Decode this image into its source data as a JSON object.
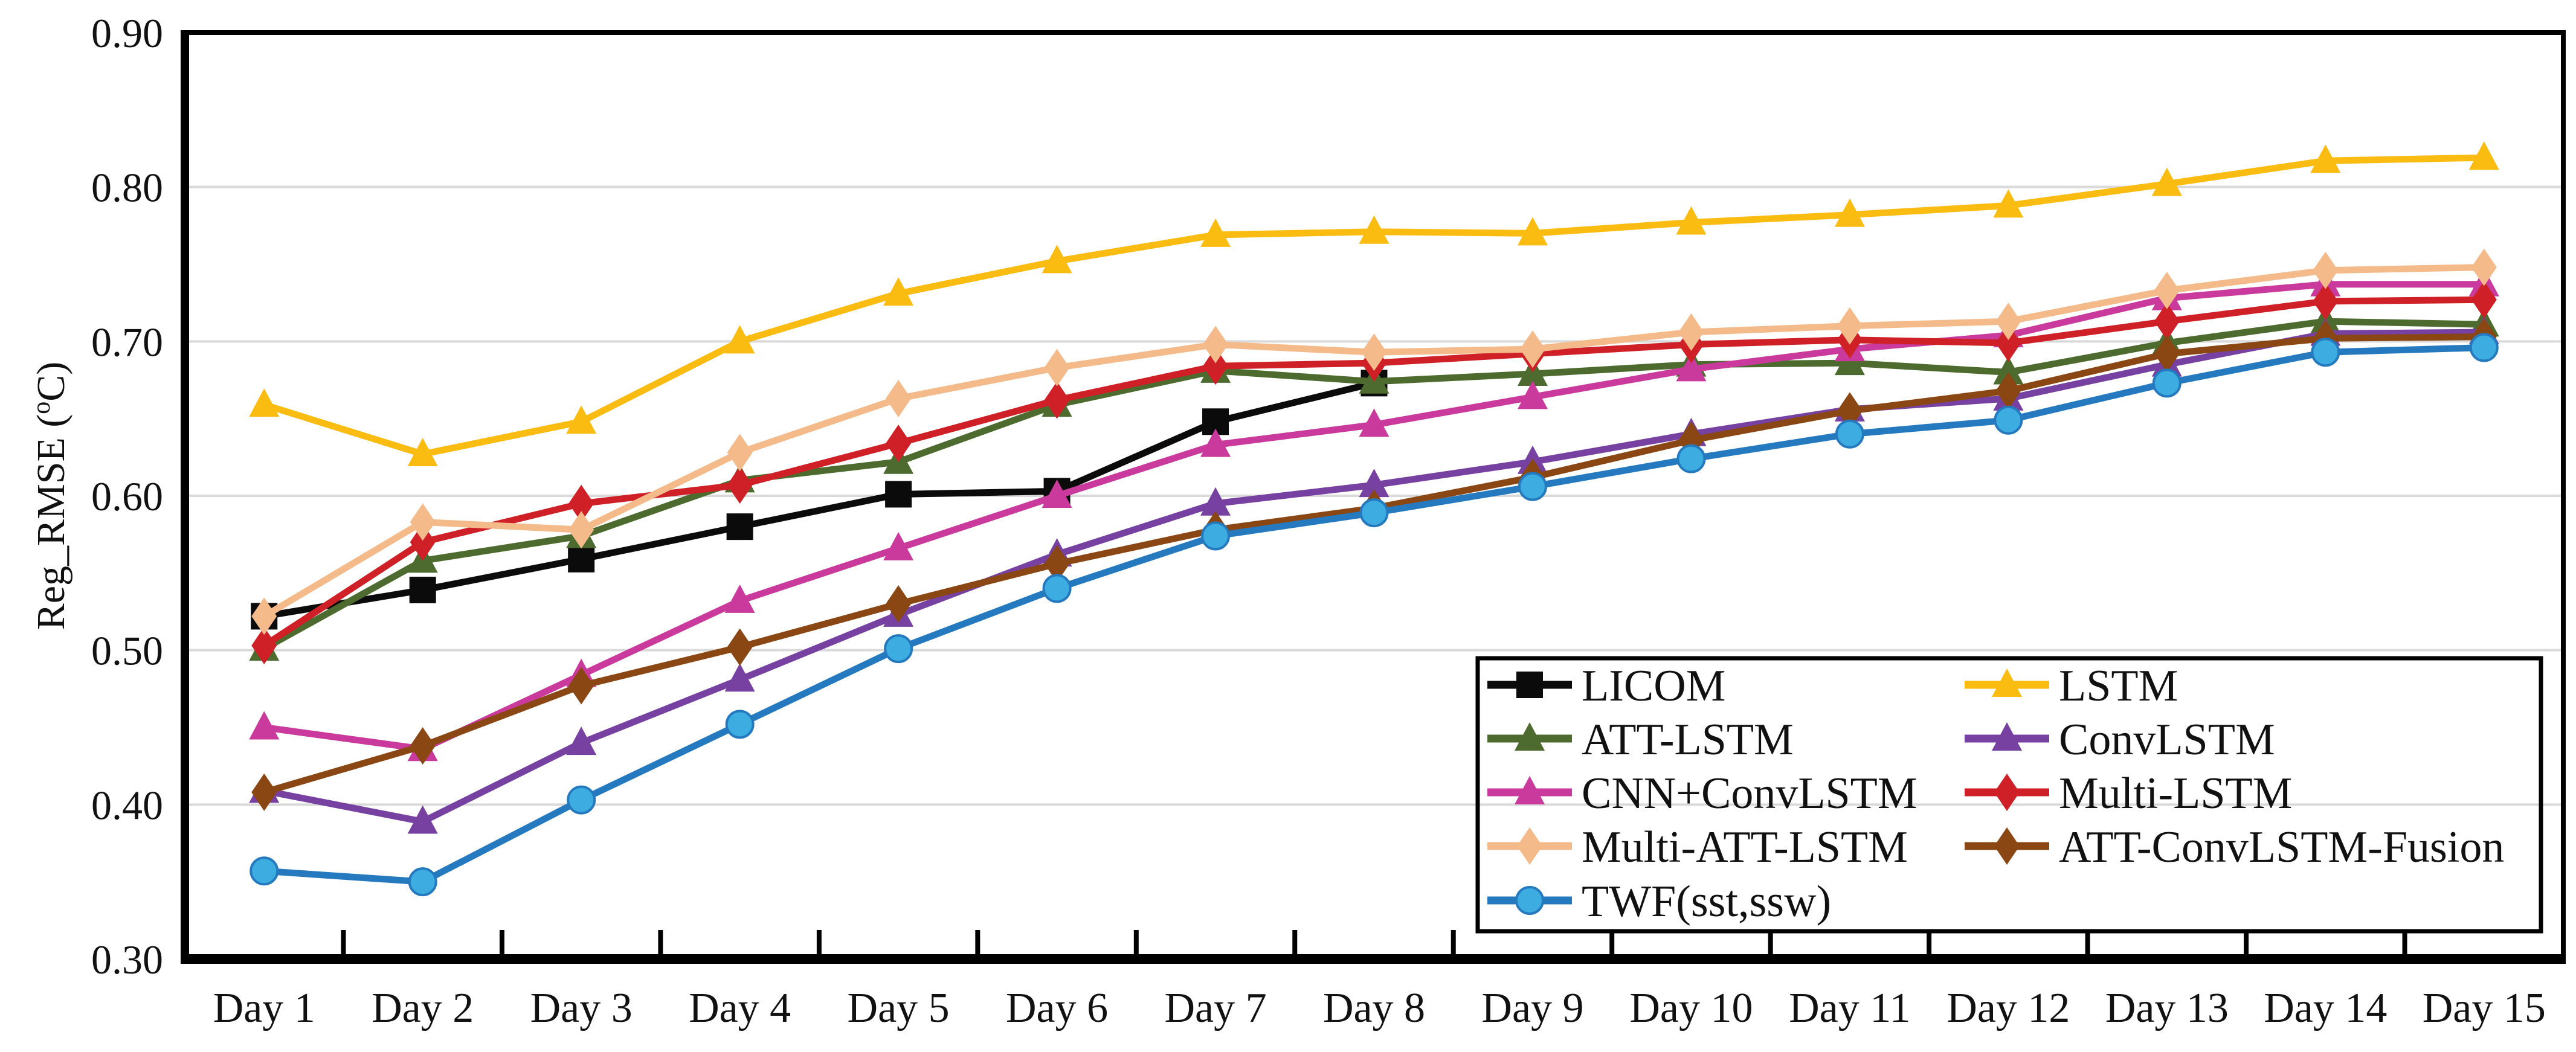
{
  "chart_data": {
    "type": "line",
    "title": "",
    "xlabel": "",
    "ylabel": "Reg_RMSE (°C)",
    "ylabel_parts": {
      "prefix": "Reg_RMSE (",
      "sup": "o",
      "suffix": "C)"
    },
    "categories": [
      "Day 1",
      "Day 2",
      "Day 3",
      "Day 4",
      "Day 5",
      "Day 6",
      "Day 7",
      "Day 8",
      "Day 9",
      "Day 10",
      "Day 11",
      "Day 12",
      "Day 13",
      "Day 14",
      "Day 15"
    ],
    "ylim": [
      0.3,
      0.9
    ],
    "ytick_step": 0.1,
    "ytick_labels": [
      "0.30",
      "0.40",
      "0.50",
      "0.60",
      "0.70",
      "0.80",
      "0.90"
    ],
    "grid": "horizontal",
    "grid_color": "#d9d9d9",
    "axis_color": "#000000",
    "legend_position": "inside-bottom-right-two-columns",
    "legend_columns": [
      [
        "LICOM",
        "ATT-LSTM",
        "CNN+ConvLSTM",
        "Multi-ATT-LSTM",
        "TWF(sst,ssw)"
      ],
      [
        "LSTM",
        "ConvLSTM",
        "Multi-LSTM",
        "ATT-ConvLSTM-Fusion"
      ]
    ],
    "series": [
      {
        "name": "LICOM",
        "marker": "square",
        "color": "#0b0b0b",
        "values": [
          0.522,
          0.539,
          0.559,
          0.58,
          0.601,
          0.603,
          0.648,
          0.673,
          null,
          null,
          null,
          null,
          null,
          null,
          null
        ]
      },
      {
        "name": "LSTM",
        "marker": "triangle",
        "color": "#fbbc12",
        "values": [
          0.659,
          0.627,
          0.648,
          0.7,
          0.731,
          0.752,
          0.769,
          0.771,
          0.77,
          0.777,
          0.782,
          0.788,
          0.802,
          0.817,
          0.819
        ]
      },
      {
        "name": "ATT-LSTM",
        "marker": "triangle",
        "color": "#4d6b2e",
        "values": [
          0.501,
          0.558,
          0.574,
          0.61,
          0.622,
          0.659,
          0.681,
          0.674,
          0.679,
          0.685,
          0.686,
          0.68,
          0.699,
          0.713,
          0.711
        ]
      },
      {
        "name": "ConvLSTM",
        "marker": "triangle",
        "color": "#7641a1",
        "values": [
          0.409,
          0.389,
          0.44,
          0.481,
          0.523,
          0.562,
          0.595,
          0.607,
          0.622,
          0.64,
          0.656,
          0.663,
          0.685,
          0.705,
          0.706
        ]
      },
      {
        "name": "CNN+ConvLSTM",
        "marker": "triangle",
        "color": "#c93a9c",
        "values": [
          0.45,
          0.436,
          0.484,
          0.532,
          0.566,
          0.6,
          0.633,
          0.646,
          0.664,
          0.682,
          0.695,
          0.704,
          0.728,
          0.737,
          0.737
        ]
      },
      {
        "name": "Multi-LSTM",
        "marker": "diamond",
        "color": "#ce2026",
        "values": [
          0.503,
          0.57,
          0.595,
          0.607,
          0.634,
          0.662,
          0.684,
          0.686,
          0.692,
          0.698,
          0.701,
          0.699,
          0.713,
          0.726,
          0.727
        ]
      },
      {
        "name": "Multi-ATT-LSTM",
        "marker": "diamond",
        "color": "#f5ba8a",
        "values": [
          0.522,
          0.583,
          0.578,
          0.628,
          0.663,
          0.683,
          0.698,
          0.693,
          0.695,
          0.706,
          0.71,
          0.713,
          0.733,
          0.746,
          0.748
        ]
      },
      {
        "name": "ATT-ConvLSTM-Fusion",
        "marker": "diamond",
        "color": "#8a4713",
        "values": [
          0.408,
          0.438,
          0.477,
          0.502,
          0.53,
          0.556,
          0.578,
          0.592,
          0.612,
          0.636,
          0.655,
          0.668,
          0.692,
          0.702,
          0.703
        ]
      },
      {
        "name": "TWF(sst,ssw)",
        "marker": "circle",
        "color": "#2579be",
        "marker_fill": "#3cace1",
        "values": [
          0.357,
          0.35,
          0.403,
          0.452,
          0.501,
          0.54,
          0.574,
          0.589,
          0.606,
          0.624,
          0.64,
          0.649,
          0.673,
          0.693,
          0.696
        ]
      }
    ]
  }
}
